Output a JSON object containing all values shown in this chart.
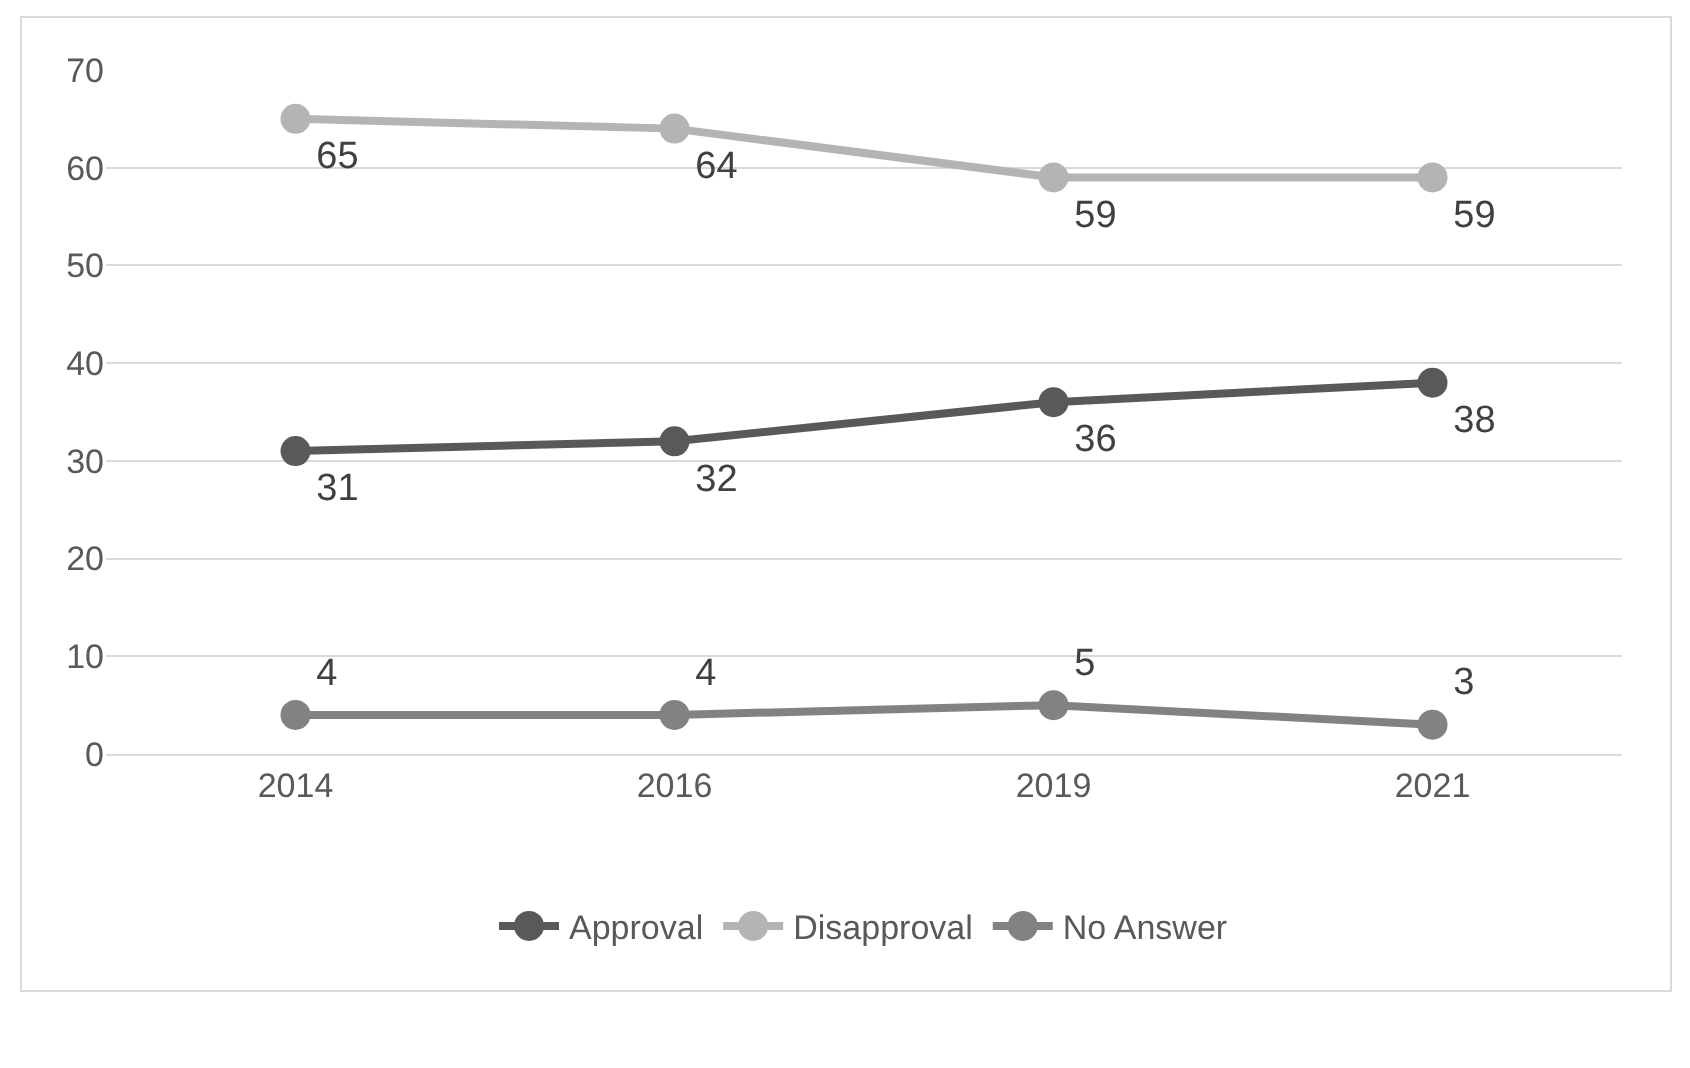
{
  "chart_data": {
    "type": "line",
    "categories": [
      "2014",
      "2016",
      "2019",
      "2021"
    ],
    "series": [
      {
        "name": "Approval",
        "color": "#595959",
        "values": [
          31,
          32,
          36,
          38
        ]
      },
      {
        "name": "Disapproval",
        "color": "#b4b4b4",
        "values": [
          65,
          64,
          59,
          59
        ]
      },
      {
        "name": "No Answer",
        "color": "#828282",
        "values": [
          4,
          4,
          5,
          3
        ]
      }
    ],
    "ylim": [
      0,
      70
    ],
    "yticks": [
      0,
      10,
      20,
      30,
      40,
      50,
      60,
      70
    ],
    "grid": "y",
    "legend": "bottom",
    "marker": "circle",
    "line_style": "solid",
    "data_labels": true
  }
}
